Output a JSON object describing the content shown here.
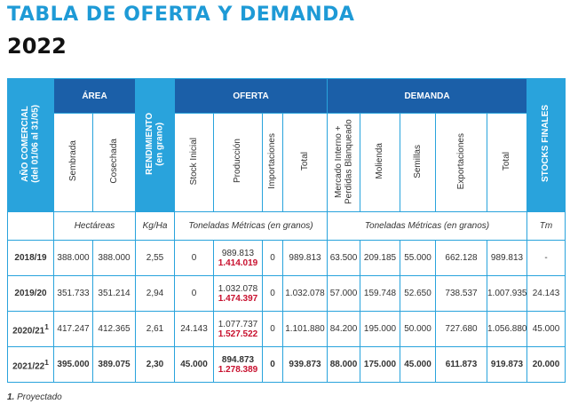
{
  "title": "TABLA DE OFERTA Y DEMANDA",
  "year": "2022",
  "table": {
    "year_header": {
      "title": "AÑO COMERCIAL",
      "subtitle": "(del 01/06 al 31/05)"
    },
    "area": {
      "title": "ÁREA",
      "columns": [
        "Sembrada",
        "Cosechada"
      ],
      "unit": "Hectáreas"
    },
    "yield": {
      "title": "RENDIMIENTO",
      "subtitle": "(en grano)",
      "unit": "Kg/Ha"
    },
    "supply": {
      "title": "OFERTA",
      "columns": [
        "Stock Inicial",
        "Producción",
        "Importaciones",
        "Total"
      ],
      "unit": "Toneladas Métricas (en granos)"
    },
    "demand": {
      "title": "DEMANDA",
      "columns": [
        "Mercado Interno + Perdidas Blanqueado",
        "Molienda",
        "Semillas",
        "Exportaciones",
        "Total"
      ],
      "unit": "Toneladas Métricas (en granos)"
    },
    "stocks": {
      "title": "STOCKS FINALES",
      "unit": "Tm"
    },
    "rows": [
      {
        "year": "2018/19",
        "cells": [
          "388.000",
          "388.000",
          "2,55",
          "0",
          "989.813",
          "0",
          "989.813",
          "63.500",
          "209.185",
          "55.000",
          "662.128",
          "989.813",
          "-"
        ],
        "production_alt": "1.414.019"
      },
      {
        "year": "2019/20",
        "cells": [
          "351.733",
          "351.214",
          "2,94",
          "0",
          "1.032.078",
          "0",
          "1.032.078",
          "57.000",
          "159.748",
          "52.650",
          "738.537",
          "1.007.935",
          "24.143"
        ],
        "production_alt": "1.474.397"
      },
      {
        "year": "2020/21",
        "note": "1",
        "cells": [
          "417.247",
          "412.365",
          "2,61",
          "24.143",
          "1.077.737",
          "0",
          "1.101.880",
          "84.200",
          "195.000",
          "50.000",
          "727.680",
          "1.056.880",
          "45.000"
        ],
        "production_alt": "1.527.522"
      },
      {
        "year": "2021/22",
        "note": "1",
        "cells": [
          "395.000",
          "389.075",
          "2,30",
          "45.000",
          "894.873",
          "0",
          "939.873",
          "88.000",
          "175.000",
          "45.000",
          "611.873",
          "919.873",
          "20.000"
        ],
        "production_alt": "1.278.389"
      }
    ]
  },
  "footnote": {
    "number": "1.",
    "text": "Proyectado"
  }
}
